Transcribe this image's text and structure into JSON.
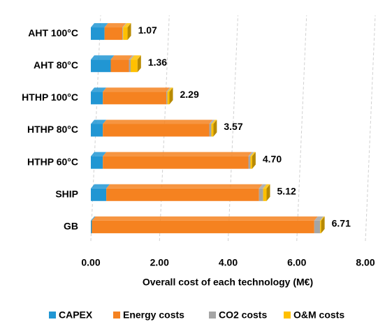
{
  "chart_data": {
    "type": "stacked-bar-horizontal",
    "categories": [
      "AHT 100°C",
      "AHT 80°C",
      "HTHP 100°C",
      "HTHP 80°C",
      "HTHP 60°C",
      "SHIP",
      "GB"
    ],
    "series": [
      {
        "name": "CAPEX",
        "color": "#2196d3",
        "values": [
          0.4,
          0.58,
          0.35,
          0.35,
          0.35,
          0.45,
          0.03
        ]
      },
      {
        "name": "Energy costs",
        "color": "#f58220",
        "values": [
          0.52,
          0.53,
          1.85,
          3.1,
          4.24,
          4.45,
          6.48
        ]
      },
      {
        "name": "CO2 costs",
        "color": "#a5a5a5",
        "values": [
          0.02,
          0.05,
          0.03,
          0.06,
          0.06,
          0.12,
          0.17
        ]
      },
      {
        "name": "O&M costs",
        "color": "#ffc000",
        "values": [
          0.13,
          0.2,
          0.06,
          0.06,
          0.05,
          0.1,
          0.03
        ]
      }
    ],
    "totals": [
      1.07,
      1.36,
      2.29,
      3.57,
      4.7,
      5.12,
      6.71
    ],
    "total_labels": [
      "1.07",
      "1.36",
      "2.29",
      "3.57",
      "4.70",
      "5.12",
      "6.71"
    ],
    "xlabel": "Overall cost of each technology (M€)",
    "xlim": [
      0,
      8
    ],
    "xticks": [
      {
        "value": 0,
        "label": "0.00"
      },
      {
        "value": 2,
        "label": "2.00"
      },
      {
        "value": 4,
        "label": "4.00"
      },
      {
        "value": 6,
        "label": "6.00"
      },
      {
        "value": 8,
        "label": "8.00"
      }
    ],
    "grid": true
  }
}
